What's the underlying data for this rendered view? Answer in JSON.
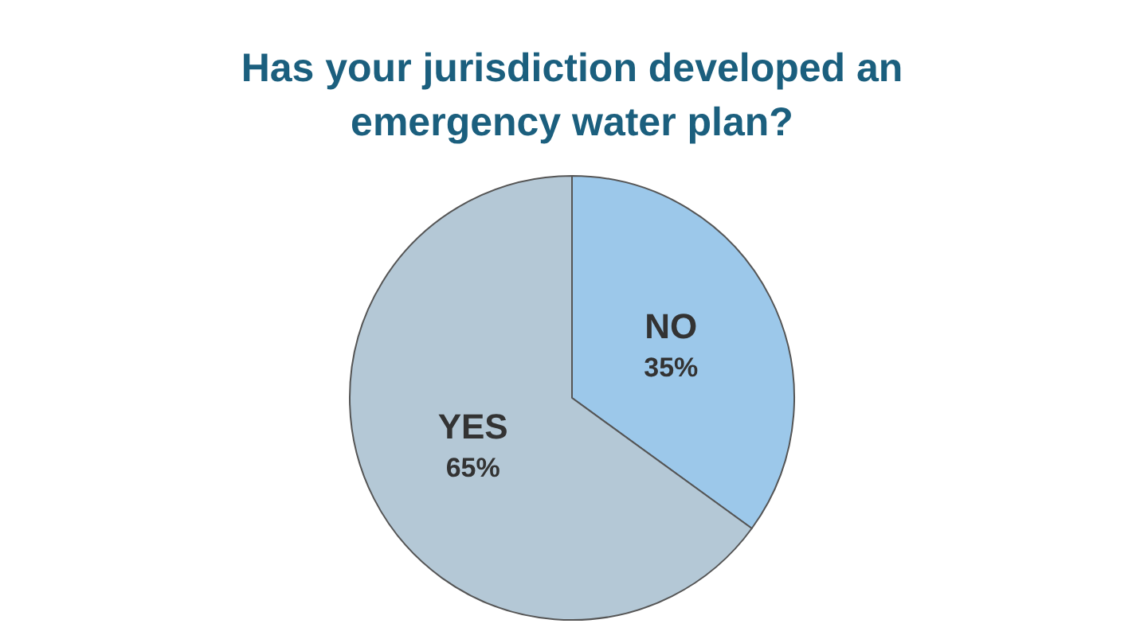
{
  "chart_data": {
    "type": "pie",
    "title": "Has your jurisdiction developed an emergency water plan?",
    "categories": [
      "NO",
      "YES"
    ],
    "values": [
      35,
      65
    ],
    "colors": [
      "#9cc8ea",
      "#b4c8d6"
    ],
    "value_labels": [
      "35%",
      "65%"
    ],
    "legend": false
  }
}
